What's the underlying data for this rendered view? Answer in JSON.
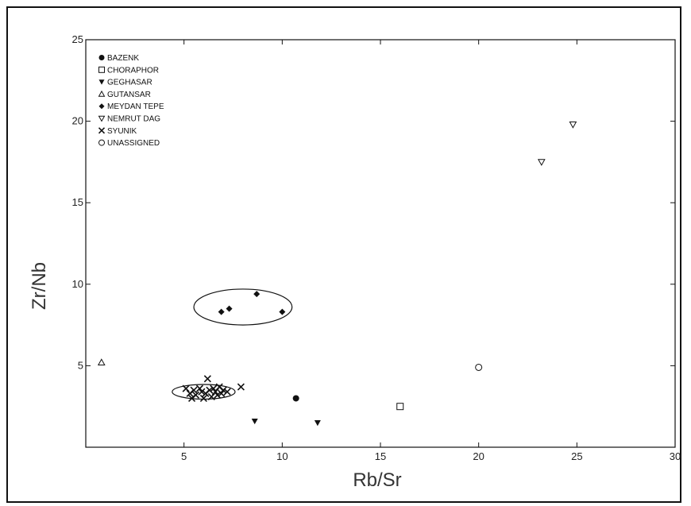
{
  "chart_data": {
    "type": "scatter",
    "title": "",
    "xlabel": "Rb/Sr",
    "ylabel": "Zr/Nb",
    "xlim": [
      0,
      30
    ],
    "ylim": [
      0,
      25
    ],
    "xticks": [
      5,
      10,
      15,
      20,
      25,
      30
    ],
    "yticks": [
      5,
      10,
      15,
      20,
      25
    ],
    "grid": false,
    "legend_position": "top-left",
    "series": [
      {
        "name": "BAZENK",
        "marker": "filled-circle",
        "points": [
          [
            10.7,
            3.0
          ]
        ]
      },
      {
        "name": "CHORAPHOR",
        "marker": "open-square",
        "points": [
          [
            16.0,
            2.5
          ]
        ]
      },
      {
        "name": "GEGHASAR",
        "marker": "filled-triangle-down",
        "points": [
          [
            8.6,
            1.6
          ],
          [
            11.8,
            1.5
          ]
        ]
      },
      {
        "name": "GUTANSAR",
        "marker": "open-triangle-up",
        "points": [
          [
            0.8,
            5.2
          ]
        ]
      },
      {
        "name": "MEYDAN TEPE",
        "marker": "filled-diamond",
        "points": [
          [
            6.9,
            8.3
          ],
          [
            7.3,
            8.5
          ],
          [
            8.7,
            9.4
          ],
          [
            10.0,
            8.3
          ]
        ]
      },
      {
        "name": "NEMRUT DAG",
        "marker": "open-triangle-down",
        "points": [
          [
            23.2,
            17.5
          ],
          [
            24.8,
            19.8
          ]
        ]
      },
      {
        "name": "SYUNIK",
        "marker": "x",
        "points": [
          [
            5.1,
            3.6
          ],
          [
            5.3,
            3.3
          ],
          [
            5.5,
            3.5
          ],
          [
            5.6,
            3.2
          ],
          [
            5.8,
            3.6
          ],
          [
            5.9,
            3.4
          ],
          [
            6.1,
            3.3
          ],
          [
            6.2,
            4.2
          ],
          [
            6.3,
            3.5
          ],
          [
            6.4,
            3.1
          ],
          [
            6.5,
            3.6
          ],
          [
            6.6,
            3.4
          ],
          [
            6.7,
            3.2
          ],
          [
            6.8,
            3.7
          ],
          [
            6.9,
            3.3
          ],
          [
            7.0,
            3.5
          ],
          [
            7.2,
            3.4
          ],
          [
            7.9,
            3.7
          ],
          [
            5.4,
            3.0
          ],
          [
            6.0,
            3.0
          ]
        ]
      },
      {
        "name": "UNASSIGNED",
        "marker": "open-circle",
        "points": [
          [
            20.0,
            4.9
          ]
        ]
      }
    ],
    "annotations": [
      {
        "type": "ellipse",
        "cx": 8.0,
        "cy": 8.6,
        "rx": 2.5,
        "ry": 1.1
      },
      {
        "type": "ellipse",
        "cx": 6.0,
        "cy": 3.4,
        "rx": 1.6,
        "ry": 0.45
      }
    ]
  }
}
